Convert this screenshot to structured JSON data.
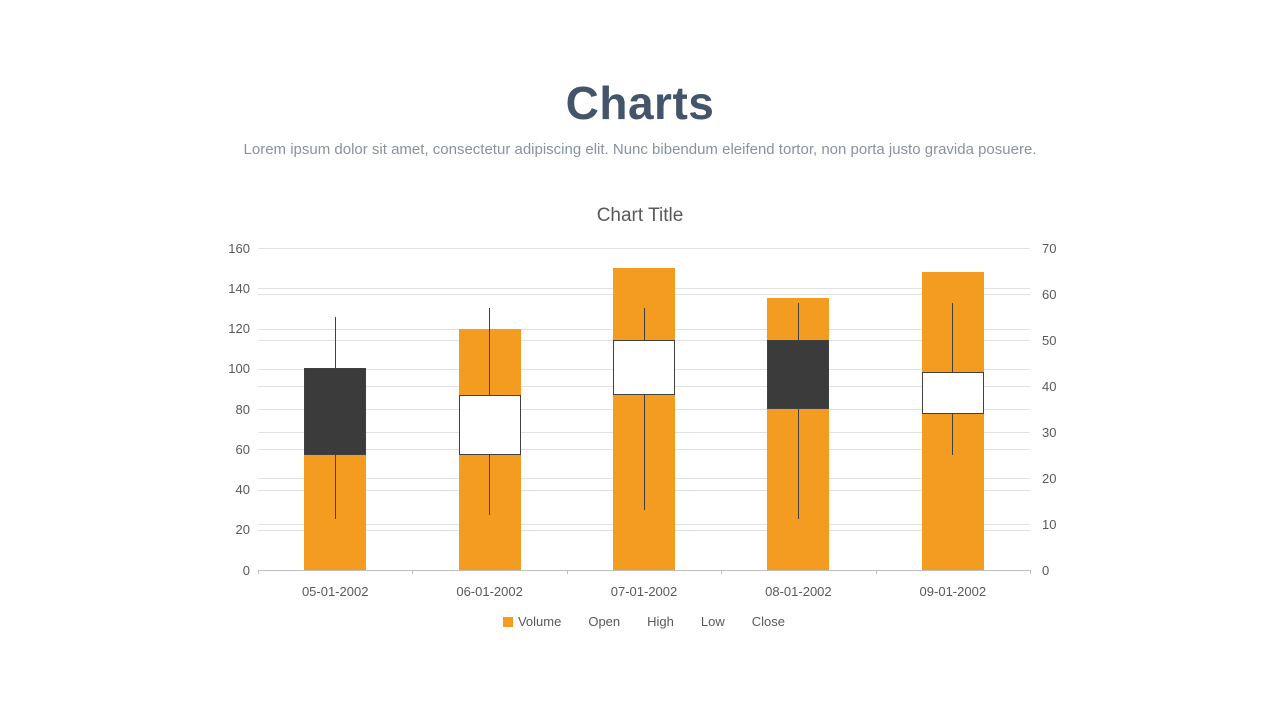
{
  "header": {
    "title": "Charts",
    "subtitle": "Lorem ipsum dolor sit amet, consectetur adipiscing elit. Nunc bibendum eleifend tortor, non porta justo gravida posuere."
  },
  "chart_data": {
    "type": "candlestick-volume",
    "title": "Chart Title",
    "categories": [
      "05-01-2002",
      "06-01-2002",
      "07-01-2002",
      "08-01-2002",
      "09-01-2002"
    ],
    "series": [
      {
        "name": "Volume",
        "type": "bar",
        "axis": "left",
        "values": [
          57,
          120,
          150,
          135,
          148
        ]
      },
      {
        "name": "Open",
        "type": "ohlc",
        "axis": "right",
        "values": [
          44,
          25,
          38,
          50,
          34
        ]
      },
      {
        "name": "High",
        "type": "ohlc",
        "axis": "right",
        "values": [
          55,
          57,
          57,
          58,
          58
        ]
      },
      {
        "name": "Low",
        "type": "ohlc",
        "axis": "right",
        "values": [
          11,
          12,
          13,
          11,
          25
        ]
      },
      {
        "name": "Close",
        "type": "ohlc",
        "axis": "right",
        "values": [
          25,
          38,
          50,
          35,
          43
        ]
      }
    ],
    "left_axis": {
      "min": 0,
      "max": 160,
      "step": 20,
      "ticks": [
        0,
        20,
        40,
        60,
        80,
        100,
        120,
        140,
        160
      ]
    },
    "right_axis": {
      "min": 0,
      "max": 70,
      "step": 10,
      "ticks": [
        0,
        10,
        20,
        30,
        40,
        50,
        60,
        70
      ]
    },
    "legend": [
      "Volume",
      "Open",
      "High",
      "Low",
      "Close"
    ],
    "legend_position": "bottom",
    "grid": true,
    "colors": {
      "volume_bar": "#F49C20",
      "candle_up_fill": "#FFFFFF",
      "candle_down_fill": "#3B3B3B",
      "candle_border": "#404040",
      "whisker": "#404040",
      "gridline": "#E2E2E2",
      "axis_line": "#BFBFBF",
      "axis_text": "#595959",
      "title_text": "#44546A",
      "subtitle_text": "#8892A0",
      "chart_title_text": "#595959"
    }
  }
}
